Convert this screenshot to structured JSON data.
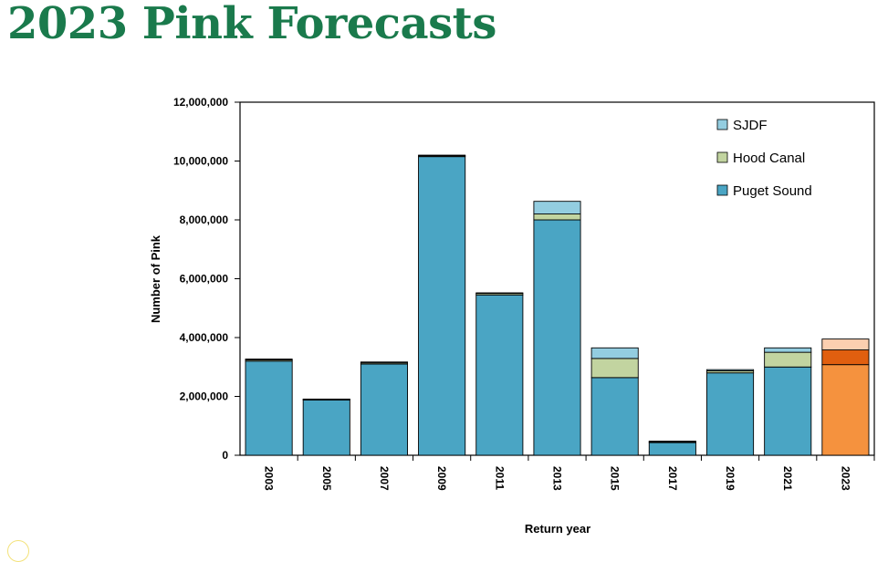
{
  "slide": {
    "title": "2023 Pink Forecasts"
  },
  "chart_data": {
    "type": "bar",
    "stacked": true,
    "title": "",
    "xlabel": "Return year",
    "ylabel": "Number of Pink",
    "ylim": [
      0,
      12000000
    ],
    "ytick_step": 2000000,
    "yticks": [
      "0",
      "2,000,000",
      "4,000,000",
      "6,000,000",
      "8,000,000",
      "10,000,000",
      "12,000,000"
    ],
    "categories": [
      "2003",
      "2005",
      "2007",
      "2009",
      "2011",
      "2013",
      "2015",
      "2017",
      "2019",
      "2021",
      "2023"
    ],
    "series": [
      {
        "name": "Puget Sound",
        "color": "#4aa5c4",
        "values": [
          3200000,
          1880000,
          3100000,
          10150000,
          5450000,
          8000000,
          2640000,
          430000,
          2800000,
          3000000,
          3080000
        ]
      },
      {
        "name": "Hood Canal",
        "color": "#c2d4a0",
        "values": [
          40000,
          20000,
          40000,
          30000,
          50000,
          200000,
          650000,
          30000,
          70000,
          500000,
          500000
        ]
      },
      {
        "name": "SJDF",
        "color": "#93cde0",
        "values": [
          30000,
          10000,
          30000,
          20000,
          20000,
          430000,
          360000,
          20000,
          40000,
          150000,
          370000
        ]
      }
    ],
    "highlight": {
      "category": "2023",
      "colors": {
        "Puget Sound": "#f5923e",
        "Hood Canal": "#e15f0f",
        "SJDF": "#fbcfb0"
      }
    },
    "legend": {
      "position": "top-right",
      "order": [
        "SJDF",
        "Hood Canal",
        "Puget Sound"
      ]
    },
    "grid": false
  }
}
